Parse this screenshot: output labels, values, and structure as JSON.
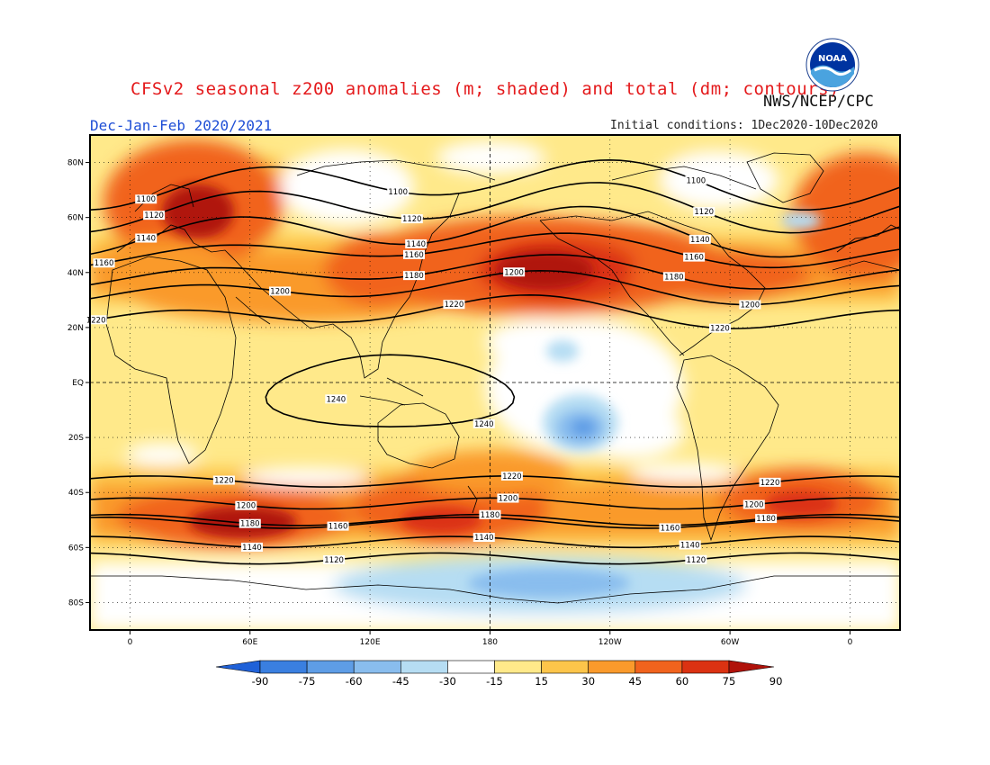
{
  "header": {
    "title": "CFSv2 seasonal z200 anomalies (m; shaded) and total (dm; contours)",
    "agency": "NWS/NCEP/CPC",
    "season": "Dec-Jan-Feb 2020/2021",
    "initial_conditions": "Initial conditions: 1Dec2020-10Dec2020",
    "logo_text": "NOAA"
  },
  "axes": {
    "lat_labels": [
      "80N",
      "60N",
      "40N",
      "20N",
      "EQ",
      "20S",
      "40S",
      "60S",
      "80S"
    ],
    "lat_values": [
      80,
      60,
      40,
      20,
      0,
      -20,
      -40,
      -60,
      -80
    ],
    "lon_labels": [
      "0",
      "60E",
      "120E",
      "180",
      "120W",
      "60W",
      "0"
    ],
    "lon_values": [
      0,
      60,
      120,
      180,
      240,
      300,
      360
    ],
    "lat_range": [
      -90,
      90
    ],
    "lon_range": [
      -20,
      385
    ]
  },
  "colorbar": {
    "ticks": [
      "-90",
      "-75",
      "-60",
      "-45",
      "-30",
      "-15",
      "15",
      "30",
      "45",
      "60",
      "75",
      "90"
    ],
    "colors": [
      "#1f61d8",
      "#3a7fe0",
      "#5e9de6",
      "#89bdee",
      "#b6ddf3",
      "#ffffff",
      "#ffe98a",
      "#fdc54a",
      "#fa9a2b",
      "#f1631d",
      "#db3212",
      "#b0120a"
    ]
  },
  "contours": {
    "units": "dm",
    "levels": [
      {
        "value": 1100,
        "lat": 72.5,
        "labels": [
          {
            "text": "1100",
            "lon": 8
          },
          {
            "text": "1100",
            "lon": 134
          },
          {
            "text": "1100",
            "lon": 283
          }
        ]
      },
      {
        "value": 1120,
        "lat": 64,
        "labels": [
          {
            "text": "1120",
            "lon": 12
          },
          {
            "text": "1120",
            "lon": 141
          },
          {
            "text": "1120",
            "lon": 287
          }
        ]
      },
      {
        "value": 1140,
        "lat": 55,
        "labels": [
          {
            "text": "1140",
            "lon": 8
          },
          {
            "text": "1140",
            "lon": 143
          },
          {
            "text": "1140",
            "lon": 285
          }
        ]
      },
      {
        "value": 1160,
        "lat": 48,
        "labels": [
          {
            "text": "1160",
            "lon": -13
          },
          {
            "text": "1160",
            "lon": 142
          },
          {
            "text": "1160",
            "lon": 282
          }
        ]
      },
      {
        "value": 1180,
        "lat": 40,
        "labels": [
          {
            "text": "1180",
            "lon": 142
          },
          {
            "text": "1180",
            "lon": 272
          }
        ]
      },
      {
        "value": 1200,
        "lat": 34,
        "labels": [
          {
            "text": "1200",
            "lon": 75
          },
          {
            "text": "1200",
            "lon": 192
          },
          {
            "text": "1200",
            "lon": 310
          }
        ]
      },
      {
        "value": 1220,
        "lat": 25,
        "labels": [
          {
            "text": "1220",
            "lon": -17
          },
          {
            "text": "1220",
            "lon": 162
          },
          {
            "text": "1220",
            "lon": 295
          }
        ]
      },
      {
        "value": 1240,
        "lat": -6,
        "labels": [
          {
            "text": "1240",
            "lon": 103
          },
          {
            "text": "1240",
            "lon": 177
          }
        ]
      },
      {
        "value": 1220,
        "lat": -36,
        "labels": [
          {
            "text": "1220",
            "lon": 47
          },
          {
            "text": "1220",
            "lon": 191
          },
          {
            "text": "1220",
            "lon": 320
          }
        ]
      },
      {
        "value": 1200,
        "lat": -44,
        "labels": [
          {
            "text": "1200",
            "lon": 58
          },
          {
            "text": "1200",
            "lon": 189
          },
          {
            "text": "1200",
            "lon": 312
          }
        ]
      },
      {
        "value": 1180,
        "lat": -50,
        "labels": [
          {
            "text": "1180",
            "lon": 60
          },
          {
            "text": "1180",
            "lon": 180
          },
          {
            "text": "1180",
            "lon": 318
          }
        ]
      },
      {
        "value": 1160,
        "lat": -51,
        "labels": [
          {
            "text": "1160",
            "lon": 104
          },
          {
            "text": "1160",
            "lon": 270
          }
        ]
      },
      {
        "value": 1140,
        "lat": -58,
        "labels": [
          {
            "text": "1140",
            "lon": 61
          },
          {
            "text": "1140",
            "lon": 177
          },
          {
            "text": "1140",
            "lon": 280
          }
        ]
      },
      {
        "value": 1120,
        "lat": -64,
        "labels": [
          {
            "text": "1120",
            "lon": 102
          },
          {
            "text": "1120",
            "lon": 283
          }
        ]
      }
    ]
  },
  "anomaly_centers": [
    {
      "lon": 30,
      "lat": 60,
      "anomaly": 90
    },
    {
      "lon": 195,
      "lat": 42,
      "anomaly": 85
    },
    {
      "lon": 60,
      "lat": -52,
      "anomaly": 85
    },
    {
      "lon": 155,
      "lat": -50,
      "anomaly": 80
    },
    {
      "lon": 335,
      "lat": -45,
      "anomaly": 80
    },
    {
      "lon": 225,
      "lat": -17,
      "anomaly": -50
    },
    {
      "lon": 220,
      "lat": -73,
      "anomaly": -35
    },
    {
      "lon": 225,
      "lat": 12,
      "anomaly": -25
    }
  ]
}
